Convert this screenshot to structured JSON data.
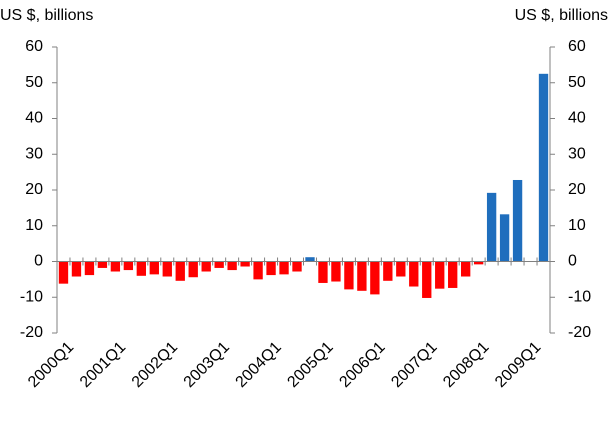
{
  "chart_data": {
    "type": "bar",
    "y_label": "US $, billions",
    "y2_label": "US $, billions",
    "categories": [
      "2000Q1",
      null,
      null,
      null,
      "2001Q1",
      null,
      null,
      null,
      "2002Q1",
      null,
      null,
      null,
      "2003Q1",
      null,
      null,
      null,
      "2004Q1",
      null,
      null,
      null,
      "2005Q1",
      null,
      null,
      null,
      "2006Q1",
      null,
      null,
      null,
      "2007Q1",
      null,
      null,
      null,
      "2008Q1",
      null,
      null,
      null,
      "2009Q1",
      null
    ],
    "values": [
      -6.2,
      -4.2,
      -3.8,
      -1.8,
      -2.8,
      -2.4,
      -4.0,
      -3.6,
      -4.2,
      -5.4,
      -4.4,
      -2.8,
      -1.8,
      -2.4,
      -1.4,
      -5.0,
      -3.8,
      -3.6,
      -2.8,
      1.2,
      -6.0,
      -5.6,
      -7.8,
      -8.2,
      -9.2,
      -5.4,
      -4.2,
      -7.0,
      -10.2,
      -7.6,
      -7.4,
      -4.2,
      -0.8,
      19.2,
      13.2,
      22.8,
      0,
      52.5
    ],
    "colors": {
      "positive": "#1f6ebd",
      "negative": "#ff0000"
    },
    "ylim": [
      -20,
      60
    ],
    "yticks": [
      -20,
      -10,
      0,
      10,
      20,
      30,
      40,
      50,
      60
    ],
    "y2lim": [
      -20,
      60
    ],
    "y2ticks": [
      -20,
      -10,
      0,
      10,
      20,
      30,
      40,
      50,
      60
    ]
  }
}
